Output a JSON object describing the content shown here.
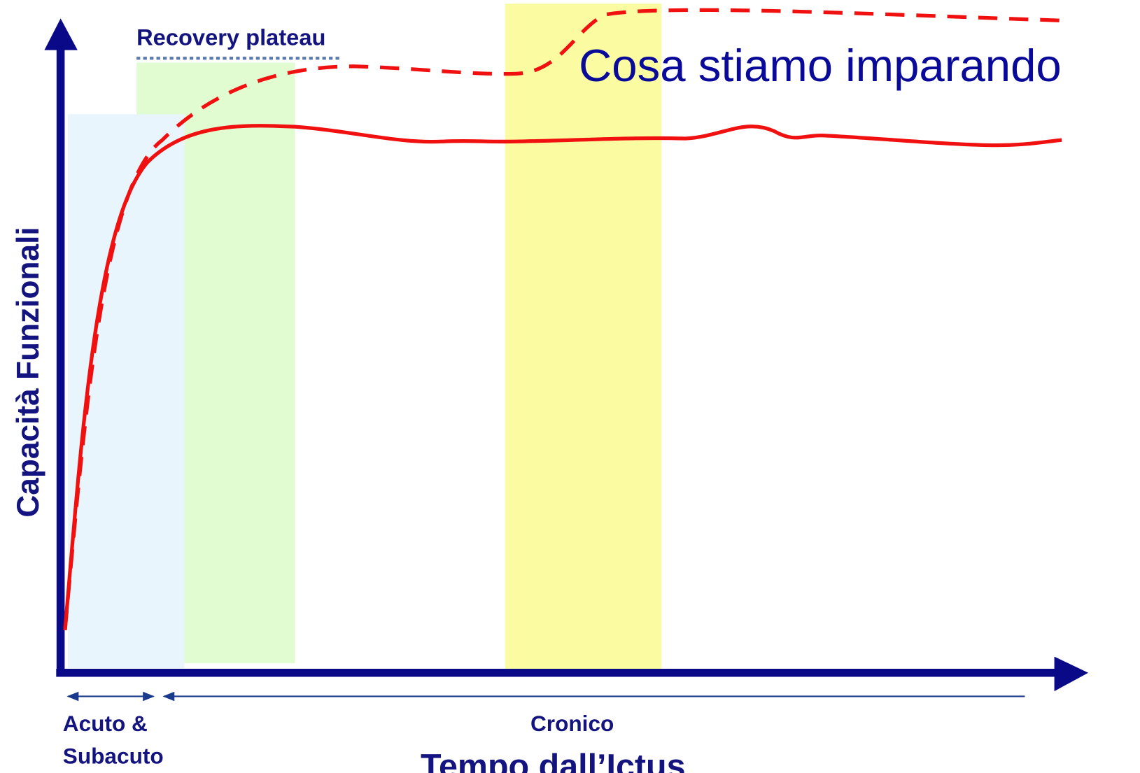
{
  "labels": {
    "plateau": "Recovery plateau",
    "learning": "Cosa stiamo imparando",
    "y_axis": "Capacità Funzionali",
    "acute_1": "Acuto &",
    "acute_2": "Subacuto",
    "chronic": "Cronico",
    "x_axis": "Tempo dall’Ictus"
  }
}
